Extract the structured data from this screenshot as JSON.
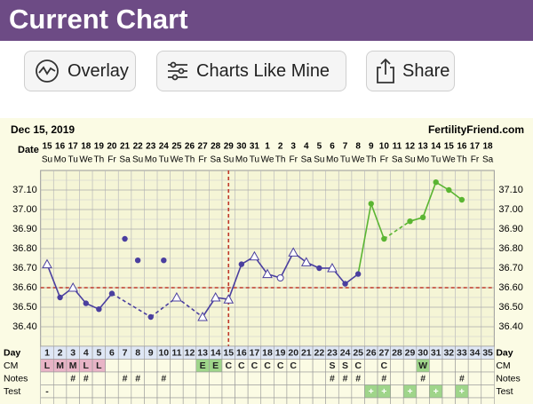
{
  "header": {
    "title": "Current Chart"
  },
  "buttons": [
    "Overlay",
    "Charts Like Mine",
    "Share"
  ],
  "chart": {
    "date": "Dec 15, 2019",
    "site": "FertilityFriend.com",
    "date_label": "Date",
    "dates": [
      "15",
      "16",
      "17",
      "18",
      "19",
      "20",
      "21",
      "22",
      "23",
      "24",
      "25",
      "26",
      "27",
      "28",
      "29",
      "30",
      "31",
      "1",
      "2",
      "3",
      "4",
      "5",
      "6",
      "7",
      "8",
      "9",
      "10",
      "11",
      "12",
      "13",
      "14",
      "15",
      "16",
      "17",
      "18"
    ],
    "weekdays": [
      "Su",
      "Mo",
      "Tu",
      "We",
      "Th",
      "Fr",
      "Sa",
      "Su",
      "Mo",
      "Tu",
      "We",
      "Th",
      "Fr",
      "Sa",
      "Su",
      "Mo",
      "Tu",
      "We",
      "Th",
      "Fr",
      "Sa",
      "Su",
      "Mo",
      "Tu",
      "We",
      "Th",
      "Fr",
      "Sa",
      "Su",
      "Mo",
      "Tu",
      "We",
      "Th",
      "Fr",
      "Sa"
    ],
    "ylim": [
      36.3,
      37.2
    ],
    "yticks": [
      {
        "value": 36.4,
        "label": "36.40"
      },
      {
        "value": 36.5,
        "label": "36.50"
      },
      {
        "value": 36.6,
        "label": "36.60"
      },
      {
        "value": 36.7,
        "label": "36.70"
      },
      {
        "value": 36.8,
        "label": "36.80"
      },
      {
        "value": 36.9,
        "label": "36.90"
      },
      {
        "value": 37.0,
        "label": "37.00"
      },
      {
        "value": 37.1,
        "label": "37.10"
      }
    ],
    "temps": [
      36.72,
      36.55,
      36.6,
      36.52,
      36.49,
      36.57,
      null,
      null,
      36.45,
      null,
      36.55,
      null,
      36.45,
      36.55,
      36.54,
      36.72,
      36.76,
      36.67,
      36.65,
      36.78,
      36.73,
      36.7,
      36.7,
      36.62,
      36.67,
      37.03,
      36.85,
      null,
      36.94,
      36.96,
      37.14,
      37.1,
      37.05,
      null,
      null
    ],
    "markers": [
      "triangle",
      "dot",
      "triangle",
      "dot",
      "dot",
      "dot",
      null,
      null,
      "dot",
      null,
      "triangle",
      null,
      "triangle",
      "triangle",
      "triangle",
      "dot",
      "triangle",
      "triangle",
      "circle",
      "triangle",
      "triangle",
      "dot",
      "triangle",
      "dot",
      "dot",
      "dot",
      "dot",
      null,
      "dot",
      "dot",
      "dot",
      "dot",
      "dot",
      null,
      null
    ],
    "colors": [
      "#4a3f9f",
      "#4a3f9f",
      "#4a3f9f",
      "#4a3f9f",
      "#4a3f9f",
      "#4a3f9f",
      null,
      null,
      "#4a3f9f",
      null,
      "#4a3f9f",
      null,
      "#4a3f9f",
      "#4a3f9f",
      "#4a3f9f",
      "#4a3f9f",
      "#4a3f9f",
      "#4a3f9f",
      "#4a3f9f",
      "#4a3f9f",
      "#4a3f9f",
      "#4a3f9f",
      "#4a3f9f",
      "#4a3f9f",
      "#4a3f9f",
      "#5ab532",
      "#5ab532",
      null,
      "#5ab532",
      "#5ab532",
      "#5ab532",
      "#5ab532",
      "#5ab532",
      null,
      null
    ],
    "discarded": [
      null,
      null,
      null,
      null,
      null,
      null,
      36.85,
      36.74,
      null,
      36.74,
      null,
      null,
      null,
      null,
      null,
      null,
      null,
      null,
      null,
      null,
      null,
      null,
      null,
      null,
      null,
      null,
      null,
      null,
      null,
      null,
      null,
      null,
      null,
      null,
      null
    ],
    "coverline": 36.6,
    "ovulation_day": 15,
    "days_label": "Day",
    "days": [
      1,
      2,
      3,
      4,
      5,
      6,
      7,
      8,
      9,
      10,
      11,
      12,
      13,
      14,
      15,
      16,
      17,
      18,
      19,
      20,
      21,
      22,
      23,
      24,
      25,
      26,
      27,
      28,
      29,
      30,
      31,
      32,
      33,
      34,
      35
    ],
    "rows": [
      {
        "label": "CM",
        "cells": [
          "L",
          "M",
          "M",
          "L",
          "L",
          null,
          null,
          null,
          null,
          null,
          null,
          null,
          "E",
          "E",
          "C",
          "C",
          "C",
          "C",
          "C",
          "C",
          null,
          null,
          "S",
          "S",
          "C",
          null,
          "C",
          null,
          null,
          "W",
          null,
          null,
          null,
          null,
          null
        ]
      },
      {
        "label": "Notes",
        "cells": [
          null,
          null,
          "#",
          "#",
          null,
          null,
          "#",
          "#",
          null,
          "#",
          null,
          null,
          null,
          null,
          null,
          null,
          null,
          null,
          null,
          null,
          null,
          null,
          "#",
          "#",
          "#",
          null,
          "#",
          null,
          null,
          "#",
          null,
          null,
          "#",
          null,
          null
        ]
      },
      {
        "label": "Test",
        "cells": [
          "-",
          null,
          null,
          null,
          null,
          null,
          null,
          null,
          null,
          null,
          null,
          null,
          null,
          null,
          null,
          null,
          null,
          null,
          null,
          null,
          null,
          null,
          null,
          null,
          null,
          "+",
          "+",
          null,
          "+",
          null,
          "+",
          null,
          "+",
          null,
          null
        ]
      }
    ]
  }
}
